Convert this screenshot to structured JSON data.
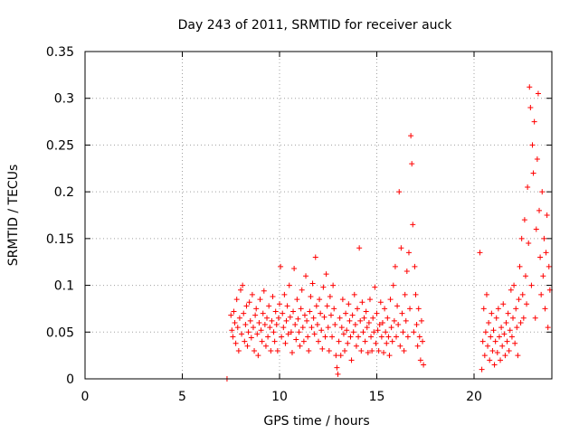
{
  "chart_data": {
    "type": "scatter",
    "title": "Day 243 of 2011, SRMTID for receiver auck",
    "xlabel": "GPS time / hours",
    "ylabel": "SRMTID / TECUs",
    "xlim": [
      0,
      24
    ],
    "ylim": [
      0,
      0.35
    ],
    "x_ticks": [
      0,
      5,
      10,
      15,
      20
    ],
    "x_tick_labels": [
      "0",
      "5",
      "10",
      "15",
      "20"
    ],
    "y_ticks": [
      0,
      0.05,
      0.1,
      0.15,
      0.2,
      0.25,
      0.3,
      0.35
    ],
    "y_tick_labels": [
      "0",
      "0.05",
      "0.1",
      "0.15",
      "0.2",
      "0.25",
      "0.3",
      "0.35"
    ],
    "grid": true,
    "legend": "none",
    "marker": "plus",
    "color": "#ff0000",
    "series": [
      {
        "points": [
          [
            7.3,
            0.0
          ],
          [
            7.5,
            0.068
          ],
          [
            7.55,
            0.052
          ],
          [
            7.6,
            0.045
          ],
          [
            7.65,
            0.072
          ],
          [
            7.7,
            0.06
          ],
          [
            7.75,
            0.038
          ],
          [
            7.8,
            0.085
          ],
          [
            7.85,
            0.055
          ],
          [
            7.9,
            0.03
          ],
          [
            7.95,
            0.065
          ],
          [
            8.0,
            0.095
          ],
          [
            8.05,
            0.048
          ],
          [
            8.1,
            0.1
          ],
          [
            8.15,
            0.07
          ],
          [
            8.2,
            0.04
          ],
          [
            8.25,
            0.058
          ],
          [
            8.3,
            0.078
          ],
          [
            8.35,
            0.035
          ],
          [
            8.4,
            0.05
          ],
          [
            8.45,
            0.082
          ],
          [
            8.5,
            0.062
          ],
          [
            8.55,
            0.044
          ],
          [
            8.6,
            0.09
          ],
          [
            8.65,
            0.055
          ],
          [
            8.7,
            0.03
          ],
          [
            8.75,
            0.068
          ],
          [
            8.8,
            0.075
          ],
          [
            8.85,
            0.048
          ],
          [
            8.9,
            0.025
          ],
          [
            8.95,
            0.06
          ],
          [
            9.0,
            0.085
          ],
          [
            9.05,
            0.052
          ],
          [
            9.1,
            0.04
          ],
          [
            9.15,
            0.07
          ],
          [
            9.2,
            0.094
          ],
          [
            9.25,
            0.058
          ],
          [
            9.3,
            0.035
          ],
          [
            9.35,
            0.065
          ],
          [
            9.4,
            0.045
          ],
          [
            9.45,
            0.078
          ],
          [
            9.5,
            0.055
          ],
          [
            9.55,
            0.03
          ],
          [
            9.6,
            0.062
          ],
          [
            9.65,
            0.088
          ],
          [
            9.7,
            0.05
          ],
          [
            9.75,
            0.04
          ],
          [
            9.8,
            0.072
          ],
          [
            9.85,
            0.058
          ],
          [
            9.9,
            0.03
          ],
          [
            9.95,
            0.065
          ],
          [
            10.0,
            0.08
          ],
          [
            10.05,
            0.12
          ],
          [
            10.1,
            0.045
          ],
          [
            10.15,
            0.07
          ],
          [
            10.2,
            0.055
          ],
          [
            10.25,
            0.09
          ],
          [
            10.3,
            0.038
          ],
          [
            10.35,
            0.062
          ],
          [
            10.4,
            0.078
          ],
          [
            10.45,
            0.048
          ],
          [
            10.5,
            0.1
          ],
          [
            10.55,
            0.066
          ],
          [
            10.6,
            0.05
          ],
          [
            10.65,
            0.028
          ],
          [
            10.7,
            0.072
          ],
          [
            10.75,
            0.118
          ],
          [
            10.8,
            0.058
          ],
          [
            10.85,
            0.042
          ],
          [
            10.9,
            0.085
          ],
          [
            10.95,
            0.064
          ],
          [
            11.0,
            0.05
          ],
          [
            11.05,
            0.035
          ],
          [
            11.1,
            0.075
          ],
          [
            11.15,
            0.095
          ],
          [
            11.2,
            0.055
          ],
          [
            11.25,
            0.04
          ],
          [
            11.3,
            0.068
          ],
          [
            11.35,
            0.11
          ],
          [
            11.4,
            0.062
          ],
          [
            11.45,
            0.045
          ],
          [
            11.5,
            0.03
          ],
          [
            11.55,
            0.072
          ],
          [
            11.6,
            0.088
          ],
          [
            11.65,
            0.055
          ],
          [
            11.7,
            0.102
          ],
          [
            11.75,
            0.065
          ],
          [
            11.8,
            0.048
          ],
          [
            11.85,
            0.13
          ],
          [
            11.9,
            0.078
          ],
          [
            11.95,
            0.058
          ],
          [
            12.0,
            0.04
          ],
          [
            12.05,
            0.085
          ],
          [
            12.1,
            0.07
          ],
          [
            12.15,
            0.052
          ],
          [
            12.2,
            0.032
          ],
          [
            12.25,
            0.098
          ],
          [
            12.3,
            0.066
          ],
          [
            12.35,
            0.045
          ],
          [
            12.4,
            0.112
          ],
          [
            12.45,
            0.078
          ],
          [
            12.5,
            0.055
          ],
          [
            12.55,
            0.03
          ],
          [
            12.6,
            0.088
          ],
          [
            12.65,
            0.068
          ],
          [
            12.7,
            0.045
          ],
          [
            12.75,
            0.1
          ],
          [
            12.8,
            0.075
          ],
          [
            12.85,
            0.058
          ],
          [
            12.9,
            0.025
          ],
          [
            12.95,
            0.012
          ],
          [
            13.0,
            0.005
          ],
          [
            13.05,
            0.04
          ],
          [
            13.1,
            0.065
          ],
          [
            13.15,
            0.025
          ],
          [
            13.2,
            0.055
          ],
          [
            13.25,
            0.085
          ],
          [
            13.3,
            0.048
          ],
          [
            13.35,
            0.03
          ],
          [
            13.4,
            0.07
          ],
          [
            13.45,
            0.052
          ],
          [
            13.5,
            0.038
          ],
          [
            13.55,
            0.08
          ],
          [
            13.6,
            0.062
          ],
          [
            13.65,
            0.045
          ],
          [
            13.7,
            0.02
          ],
          [
            13.75,
            0.068
          ],
          [
            13.8,
            0.05
          ],
          [
            13.85,
            0.09
          ],
          [
            13.9,
            0.058
          ],
          [
            13.95,
            0.035
          ],
          [
            14.0,
            0.075
          ],
          [
            14.05,
            0.045
          ],
          [
            14.1,
            0.14
          ],
          [
            14.15,
            0.062
          ],
          [
            14.2,
            0.03
          ],
          [
            14.25,
            0.082
          ],
          [
            14.3,
            0.05
          ],
          [
            14.35,
            0.065
          ],
          [
            14.4,
            0.04
          ],
          [
            14.45,
            0.072
          ],
          [
            14.5,
            0.055
          ],
          [
            14.55,
            0.028
          ],
          [
            14.6,
            0.06
          ],
          [
            14.65,
            0.085
          ],
          [
            14.7,
            0.045
          ],
          [
            14.75,
            0.03
          ],
          [
            14.8,
            0.065
          ],
          [
            14.85,
            0.05
          ],
          [
            14.9,
            0.098
          ],
          [
            14.95,
            0.038
          ],
          [
            15.0,
            0.07
          ],
          [
            15.05,
            0.052
          ],
          [
            15.1,
            0.03
          ],
          [
            15.15,
            0.058
          ],
          [
            15.2,
            0.082
          ],
          [
            15.25,
            0.045
          ],
          [
            15.3,
            0.06
          ],
          [
            15.35,
            0.028
          ],
          [
            15.4,
            0.075
          ],
          [
            15.45,
            0.05
          ],
          [
            15.5,
            0.038
          ],
          [
            15.55,
            0.065
          ],
          [
            15.6,
            0.045
          ],
          [
            15.65,
            0.025
          ],
          [
            15.7,
            0.085
          ],
          [
            15.75,
            0.055
          ],
          [
            15.8,
            0.04
          ],
          [
            15.85,
            0.1
          ],
          [
            15.9,
            0.062
          ],
          [
            15.95,
            0.12
          ],
          [
            16.0,
            0.045
          ],
          [
            16.05,
            0.078
          ],
          [
            16.1,
            0.058
          ],
          [
            16.15,
            0.2
          ],
          [
            16.2,
            0.035
          ],
          [
            16.25,
            0.14
          ],
          [
            16.3,
            0.07
          ],
          [
            16.35,
            0.05
          ],
          [
            16.4,
            0.03
          ],
          [
            16.45,
            0.09
          ],
          [
            16.5,
            0.062
          ],
          [
            16.55,
            0.115
          ],
          [
            16.6,
            0.045
          ],
          [
            16.65,
            0.135
          ],
          [
            16.7,
            0.075
          ],
          [
            16.75,
            0.26
          ],
          [
            16.8,
            0.23
          ],
          [
            16.85,
            0.165
          ],
          [
            16.9,
            0.05
          ],
          [
            16.95,
            0.12
          ],
          [
            17.0,
            0.09
          ],
          [
            17.05,
            0.058
          ],
          [
            17.1,
            0.035
          ],
          [
            17.15,
            0.075
          ],
          [
            17.2,
            0.045
          ],
          [
            17.25,
            0.02
          ],
          [
            17.3,
            0.062
          ],
          [
            17.35,
            0.04
          ],
          [
            17.4,
            0.015
          ],
          [
            20.3,
            0.135
          ],
          [
            20.4,
            0.01
          ],
          [
            20.45,
            0.04
          ],
          [
            20.5,
            0.075
          ],
          [
            20.55,
            0.025
          ],
          [
            20.6,
            0.05
          ],
          [
            20.65,
            0.09
          ],
          [
            20.7,
            0.035
          ],
          [
            20.75,
            0.06
          ],
          [
            20.8,
            0.02
          ],
          [
            20.85,
            0.045
          ],
          [
            20.9,
            0.07
          ],
          [
            20.95,
            0.03
          ],
          [
            21.0,
            0.052
          ],
          [
            21.05,
            0.015
          ],
          [
            21.1,
            0.04
          ],
          [
            21.15,
            0.065
          ],
          [
            21.2,
            0.028
          ],
          [
            21.25,
            0.075
          ],
          [
            21.3,
            0.045
          ],
          [
            21.35,
            0.02
          ],
          [
            21.4,
            0.055
          ],
          [
            21.45,
            0.035
          ],
          [
            21.5,
            0.08
          ],
          [
            21.55,
            0.048
          ],
          [
            21.6,
            0.025
          ],
          [
            21.65,
            0.06
          ],
          [
            21.7,
            0.04
          ],
          [
            21.75,
            0.07
          ],
          [
            21.8,
            0.03
          ],
          [
            21.85,
            0.052
          ],
          [
            21.9,
            0.095
          ],
          [
            21.95,
            0.045
          ],
          [
            22.0,
            0.065
          ],
          [
            22.05,
            0.1
          ],
          [
            22.1,
            0.038
          ],
          [
            22.15,
            0.075
          ],
          [
            22.2,
            0.055
          ],
          [
            22.25,
            0.025
          ],
          [
            22.3,
            0.085
          ],
          [
            22.35,
            0.12
          ],
          [
            22.4,
            0.06
          ],
          [
            22.45,
            0.15
          ],
          [
            22.5,
            0.09
          ],
          [
            22.55,
            0.065
          ],
          [
            22.6,
            0.17
          ],
          [
            22.65,
            0.11
          ],
          [
            22.7,
            0.08
          ],
          [
            22.75,
            0.205
          ],
          [
            22.8,
            0.145
          ],
          [
            22.85,
            0.312
          ],
          [
            22.9,
            0.29
          ],
          [
            22.95,
            0.1
          ],
          [
            23.0,
            0.25
          ],
          [
            23.05,
            0.22
          ],
          [
            23.1,
            0.275
          ],
          [
            23.15,
            0.065
          ],
          [
            23.2,
            0.16
          ],
          [
            23.25,
            0.235
          ],
          [
            23.3,
            0.305
          ],
          [
            23.35,
            0.18
          ],
          [
            23.4,
            0.13
          ],
          [
            23.45,
            0.09
          ],
          [
            23.5,
            0.2
          ],
          [
            23.55,
            0.11
          ],
          [
            23.6,
            0.15
          ],
          [
            23.65,
            0.075
          ],
          [
            23.7,
            0.135
          ],
          [
            23.75,
            0.175
          ],
          [
            23.8,
            0.055
          ],
          [
            23.85,
            0.12
          ],
          [
            23.9,
            0.095
          ]
        ]
      }
    ]
  }
}
